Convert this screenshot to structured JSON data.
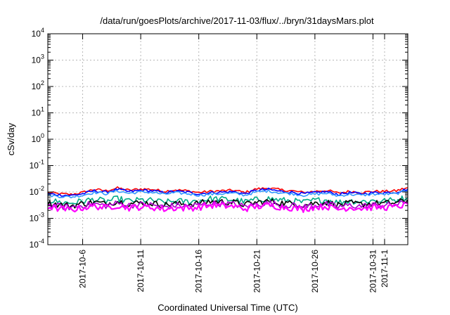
{
  "chart_data": {
    "type": "line",
    "title": "/data/run/goesPlots/archive/2017-11-03/flux/../bryn/31daysMars.plot",
    "xlabel": "Coordinated Universal Time (UTC)",
    "ylabel": "cSv/day",
    "yscale": "log",
    "ylim": [
      0.0001,
      10000
    ],
    "xlim": [
      "2017-10-03",
      "2017-11-03"
    ],
    "grid": true,
    "y_ticks": [
      {
        "base": "10",
        "exp": "-4"
      },
      {
        "base": "10",
        "exp": "-3"
      },
      {
        "base": "10",
        "exp": "-2"
      },
      {
        "base": "10",
        "exp": "-1"
      },
      {
        "base": "10",
        "exp": "0"
      },
      {
        "base": "10",
        "exp": "1"
      },
      {
        "base": "10",
        "exp": "2"
      },
      {
        "base": "10",
        "exp": "3"
      },
      {
        "base": "10",
        "exp": "4"
      }
    ],
    "x_ticks": [
      "2017-10-6",
      "2017-10-11",
      "2017-10-16",
      "2017-10-21",
      "2017-10-26",
      "2017-10-31",
      "2017-11-1"
    ],
    "x_tick_dates": [
      "2017-10-06",
      "2017-10-11",
      "2017-10-16",
      "2017-10-21",
      "2017-10-26",
      "2017-10-31",
      "2017-11-01"
    ],
    "x": [
      "2017-10-03",
      "2017-10-04",
      "2017-10-05",
      "2017-10-06",
      "2017-10-07",
      "2017-10-08",
      "2017-10-09",
      "2017-10-10",
      "2017-10-11",
      "2017-10-12",
      "2017-10-13",
      "2017-10-14",
      "2017-10-15",
      "2017-10-16",
      "2017-10-17",
      "2017-10-18",
      "2017-10-19",
      "2017-10-20",
      "2017-10-21",
      "2017-10-22",
      "2017-10-23",
      "2017-10-24",
      "2017-10-25",
      "2017-10-26",
      "2017-10-27",
      "2017-10-28",
      "2017-10-29",
      "2017-10-30",
      "2017-10-31",
      "2017-11-01",
      "2017-11-02",
      "2017-11-03"
    ],
    "series": [
      {
        "color": "#ff0000",
        "values": [
          0.0095,
          0.0085,
          0.008,
          0.0095,
          0.0125,
          0.011,
          0.014,
          0.0115,
          0.013,
          0.0125,
          0.0105,
          0.012,
          0.011,
          0.0095,
          0.0105,
          0.011,
          0.0115,
          0.0095,
          0.013,
          0.014,
          0.012,
          0.011,
          0.0095,
          0.0105,
          0.0115,
          0.009,
          0.0105,
          0.0095,
          0.0105,
          0.0105,
          0.011,
          0.0145
        ]
      },
      {
        "color": "#0000ff",
        "values": [
          0.0085,
          0.0078,
          0.0073,
          0.0085,
          0.011,
          0.0098,
          0.0125,
          0.0102,
          0.0115,
          0.011,
          0.0094,
          0.0106,
          0.0098,
          0.0085,
          0.0094,
          0.0098,
          0.0102,
          0.0085,
          0.0115,
          0.0125,
          0.0106,
          0.0098,
          0.0085,
          0.0094,
          0.0102,
          0.0081,
          0.0094,
          0.0085,
          0.0094,
          0.0094,
          0.0098,
          0.0128
        ]
      },
      {
        "color": "#3399ff",
        "values": [
          0.0075,
          0.0068,
          0.0064,
          0.0075,
          0.0096,
          0.0086,
          0.0109,
          0.0089,
          0.01,
          0.0096,
          0.0082,
          0.0093,
          0.0086,
          0.0075,
          0.0082,
          0.0086,
          0.0089,
          0.0075,
          0.01,
          0.0109,
          0.0093,
          0.0086,
          0.0075,
          0.0082,
          0.0089,
          0.0071,
          0.0082,
          0.0075,
          0.0082,
          0.0082,
          0.0086,
          0.0112
        ]
      },
      {
        "color": "#00aa88",
        "values": [
          0.0048,
          0.0041,
          0.0038,
          0.0045,
          0.0052,
          0.0044,
          0.0055,
          0.0045,
          0.0049,
          0.0047,
          0.004,
          0.0045,
          0.0043,
          0.0047,
          0.0055,
          0.0053,
          0.005,
          0.0042,
          0.0051,
          0.0056,
          0.0049,
          0.0046,
          0.004,
          0.0048,
          0.005,
          0.004,
          0.0046,
          0.0043,
          0.0047,
          0.0046,
          0.0049,
          0.0062
        ]
      },
      {
        "color": "#000000",
        "values": [
          0.0038,
          0.0033,
          0.003,
          0.0036,
          0.0041,
          0.0035,
          0.0044,
          0.0036,
          0.0039,
          0.0037,
          0.0032,
          0.0036,
          0.0034,
          0.0037,
          0.0044,
          0.0042,
          0.004,
          0.0033,
          0.004,
          0.0044,
          0.0039,
          0.0036,
          0.0032,
          0.0038,
          0.004,
          0.0032,
          0.0037,
          0.0034,
          0.0037,
          0.0037,
          0.0039,
          0.0049
        ]
      },
      {
        "color": "#aa00cc",
        "values": [
          0.0032,
          0.0028,
          0.0026,
          0.0031,
          0.0035,
          0.003,
          0.0037,
          0.0031,
          0.0033,
          0.0032,
          0.0027,
          0.0031,
          0.0029,
          0.0032,
          0.0037,
          0.0036,
          0.0034,
          0.0028,
          0.0034,
          0.0038,
          0.0033,
          0.0031,
          0.0027,
          0.0032,
          0.0034,
          0.0027,
          0.0031,
          0.0029,
          0.0032,
          0.0031,
          0.0033,
          0.0042
        ]
      },
      {
        "color": "#ff00ff",
        "values": [
          0.0027,
          0.0023,
          0.0021,
          0.0025,
          0.0029,
          0.0025,
          0.0031,
          0.0025,
          0.0027,
          0.0026,
          0.0022,
          0.0025,
          0.0024,
          0.0026,
          0.0031,
          0.003,
          0.0028,
          0.0023,
          0.0028,
          0.0031,
          0.0027,
          0.0025,
          0.0022,
          0.0027,
          0.0028,
          0.0022,
          0.0026,
          0.0024,
          0.0026,
          0.0026,
          0.0027,
          0.0034
        ]
      }
    ]
  }
}
